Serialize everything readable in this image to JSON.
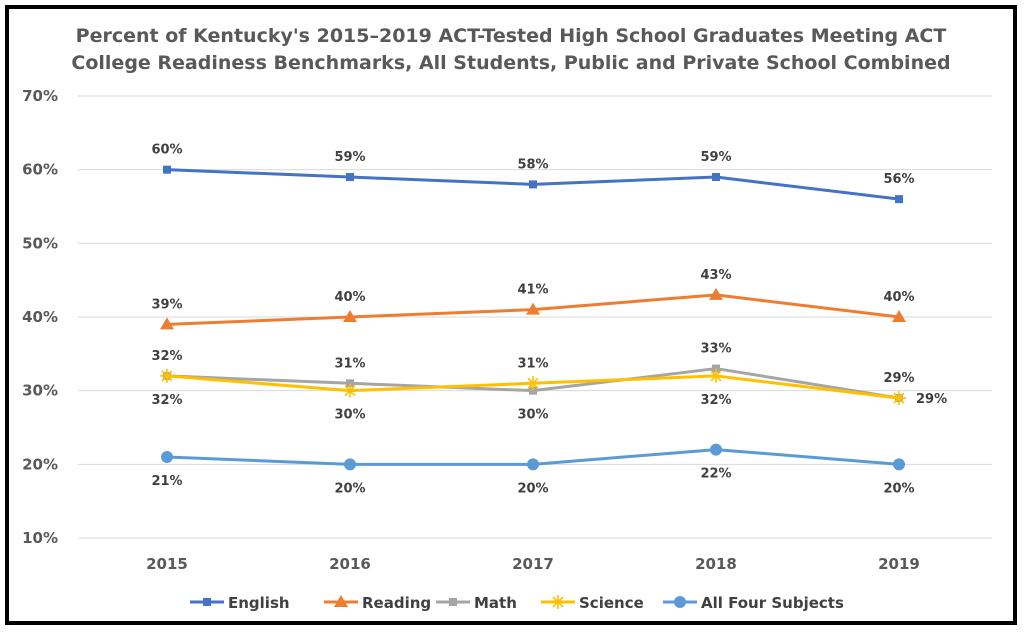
{
  "chart_data": {
    "type": "line",
    "title_lines": [
      "Percent of Kentucky's 2015–2019 ACT-Tested High School Graduates Meeting ACT",
      "College Readiness Benchmarks, All Students, Public and Private School Combined"
    ],
    "categories": [
      "2015",
      "2016",
      "2017",
      "2018",
      "2019"
    ],
    "ylim": [
      10,
      70
    ],
    "yticks": [
      10,
      20,
      30,
      40,
      50,
      60,
      70
    ],
    "ytick_labels": [
      "10%",
      "20%",
      "30%",
      "40%",
      "50%",
      "60%",
      "70%"
    ],
    "grid": true,
    "legend_position": "bottom",
    "series": [
      {
        "name": "English",
        "color": "#4472c4",
        "marker": "square",
        "values": [
          60,
          59,
          58,
          59,
          56
        ],
        "labels": [
          "60%",
          "59%",
          "58%",
          "59%",
          "56%"
        ],
        "label_positions": [
          "above",
          "above",
          "above",
          "above",
          "above"
        ]
      },
      {
        "name": "Reading",
        "color": "#ed7d31",
        "marker": "triangle",
        "values": [
          39,
          40,
          41,
          43,
          40
        ],
        "labels": [
          "39%",
          "40%",
          "41%",
          "43%",
          "40%"
        ],
        "label_positions": [
          "above",
          "above",
          "above",
          "above",
          "above"
        ]
      },
      {
        "name": "Math",
        "color": "#a5a5a5",
        "marker": "square",
        "values": [
          32,
          31,
          30,
          33,
          29
        ],
        "labels": [
          "32%",
          "31%",
          "30%",
          "33%",
          "29%"
        ],
        "label_positions": [
          "above",
          "above",
          "below",
          "above",
          "above"
        ]
      },
      {
        "name": "Science",
        "color": "#ffc000",
        "marker": "star",
        "values": [
          32,
          30,
          31,
          32,
          29
        ],
        "labels": [
          "32%",
          "30%",
          "31%",
          "32%",
          "29%"
        ],
        "label_positions": [
          "below",
          "below",
          "above",
          "below",
          "right"
        ]
      },
      {
        "name": "All Four Subjects",
        "color": "#5b9bd5",
        "marker": "circle",
        "values": [
          21,
          20,
          20,
          22,
          20
        ],
        "labels": [
          "21%",
          "20%",
          "20%",
          "22%",
          "20%"
        ],
        "label_positions": [
          "below",
          "below",
          "below",
          "below",
          "below"
        ]
      }
    ]
  }
}
